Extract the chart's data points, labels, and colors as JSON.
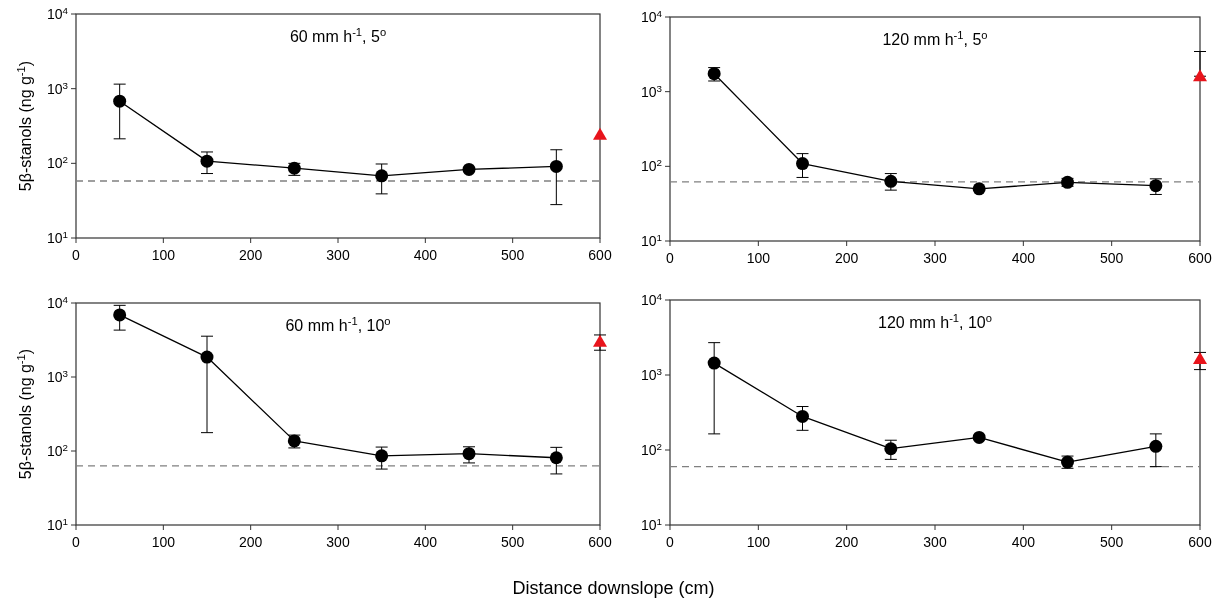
{
  "chart_data": [
    {
      "type": "line",
      "title": "60 mm h$^{-1}$, 5$^{o}$",
      "ylabel": "5β-stanols (ng g$^{-1}$)",
      "log": true,
      "xlim": [
        0,
        600
      ],
      "xticks": [
        0,
        100,
        200,
        300,
        400,
        500,
        600
      ],
      "ylim": [
        10,
        10000
      ],
      "yticks": [
        {
          "value": 10,
          "label": "10$^{1}$"
        },
        {
          "value": 100,
          "label": "10$^{2}$"
        },
        {
          "value": 1000,
          "label": "10$^{3}$"
        },
        {
          "value": 10000,
          "label": "10$^{4}$"
        }
      ],
      "ref_lines": [
        {
          "axis": "y",
          "value": 58,
          "color": "#808080",
          "line_style": "dashed"
        }
      ],
      "series": [
        {
          "color": "#000000",
          "marker": "circle",
          "x": [
            50,
            150,
            250,
            350,
            450,
            550
          ],
          "values": [
            680,
            107,
            86,
            68,
            83,
            91
          ],
          "errors": [
            [
              213,
              1150
            ],
            [
              73,
              142
            ],
            [
              69,
              100
            ],
            [
              39,
              98
            ],
            null,
            [
              28,
              152
            ]
          ]
        },
        {
          "type": "scatter",
          "color": "#e8141b",
          "marker": "triangle",
          "x": [
            600
          ],
          "values": [
            241
          ]
        }
      ]
    },
    {
      "type": "line",
      "title": "120 mm h$^{-1}$, 5$^{o}$",
      "log": true,
      "xlim": [
        0,
        600
      ],
      "xticks": [
        0,
        100,
        200,
        300,
        400,
        500,
        600
      ],
      "ylim": [
        10,
        10000
      ],
      "yticks": [
        {
          "value": 10,
          "label": "10$^{1}$"
        },
        {
          "value": 100,
          "label": "10$^{2}$"
        },
        {
          "value": 1000,
          "label": "10$^{3}$"
        },
        {
          "value": 10000,
          "label": "10$^{4}$"
        }
      ],
      "ref_lines": [
        {
          "axis": "y",
          "value": 62,
          "color": "#808080",
          "line_style": "dashed"
        }
      ],
      "series": [
        {
          "color": "#000000",
          "marker": "circle",
          "x": [
            50,
            150,
            250,
            350,
            450,
            550
          ],
          "values": [
            1740,
            109,
            63,
            50,
            61,
            55
          ],
          "errors": [
            [
              1390,
              2100
            ],
            [
              71,
              148
            ],
            [
              48,
              80
            ],
            null,
            [
              54,
              69
            ],
            [
              42,
              68
            ]
          ]
        },
        {
          "type": "scatter",
          "color": "#e8141b",
          "marker": "triangle",
          "x": [
            600
          ],
          "values": [
            1610
          ],
          "errors": [
            [
              1610,
              3450
            ]
          ]
        }
      ]
    },
    {
      "type": "line",
      "title": "60 mm h$^{-1}$, 10$^{o}$",
      "ylabel": "5β-stanols (ng g$^{-1}$)",
      "xlabel": "Distance downslope (cm)",
      "log": true,
      "xlim": [
        0,
        600
      ],
      "xticks": [
        0,
        100,
        200,
        300,
        400,
        500,
        600
      ],
      "ylim": [
        10,
        10000
      ],
      "yticks": [
        {
          "value": 10,
          "label": "10$^{1}$"
        },
        {
          "value": 100,
          "label": "10$^{2}$"
        },
        {
          "value": 1000,
          "label": "10$^{3}$"
        },
        {
          "value": 10000,
          "label": "10$^{4}$"
        }
      ],
      "ref_lines": [
        {
          "axis": "y",
          "value": 63,
          "color": "#808080",
          "line_style": "dashed"
        }
      ],
      "series": [
        {
          "color": "#000000",
          "marker": "circle",
          "x": [
            50,
            150,
            250,
            350,
            450,
            550
          ],
          "values": [
            6900,
            1860,
            137,
            86,
            92,
            81
          ],
          "errors": [
            [
              4300,
              9300
            ],
            [
              177,
              3560
            ],
            [
              110,
              164
            ],
            [
              57,
              113
            ],
            [
              69,
              114
            ],
            [
              49,
              112
            ]
          ]
        },
        {
          "type": "scatter",
          "color": "#e8141b",
          "marker": "triangle",
          "x": [
            600
          ],
          "values": [
            3000
          ],
          "errors": [
            [
              2300,
              3700
            ]
          ]
        }
      ]
    },
    {
      "type": "line",
      "title": "120 mm h$^{-1}$, 10$^{o}$",
      "log": true,
      "xlim": [
        0,
        600
      ],
      "xticks": [
        0,
        100,
        200,
        300,
        400,
        500,
        600
      ],
      "ylim": [
        10,
        10000
      ],
      "yticks": [
        {
          "value": 10,
          "label": "10$^{1}$"
        },
        {
          "value": 100,
          "label": "10$^{2}$"
        },
        {
          "value": 1000,
          "label": "10$^{3}$"
        },
        {
          "value": 10000,
          "label": "10$^{4}$"
        }
      ],
      "ref_lines": [
        {
          "axis": "y",
          "value": 60,
          "color": "#808080",
          "line_style": "dashed"
        }
      ],
      "series": [
        {
          "color": "#000000",
          "marker": "circle",
          "x": [
            50,
            150,
            250,
            350,
            450,
            550
          ],
          "values": [
            1440,
            280,
            104,
            147,
            69,
            112
          ],
          "errors": [
            [
              164,
              2700
            ],
            [
              183,
              380
            ],
            [
              75,
              135
            ],
            null,
            [
              57,
              83
            ],
            [
              60,
              164
            ]
          ]
        },
        {
          "type": "scatter",
          "color": "#e8141b",
          "marker": "triangle",
          "x": [
            600
          ],
          "values": [
            1630
          ],
          "errors": [
            [
              1180,
              2000
            ]
          ]
        }
      ]
    }
  ]
}
